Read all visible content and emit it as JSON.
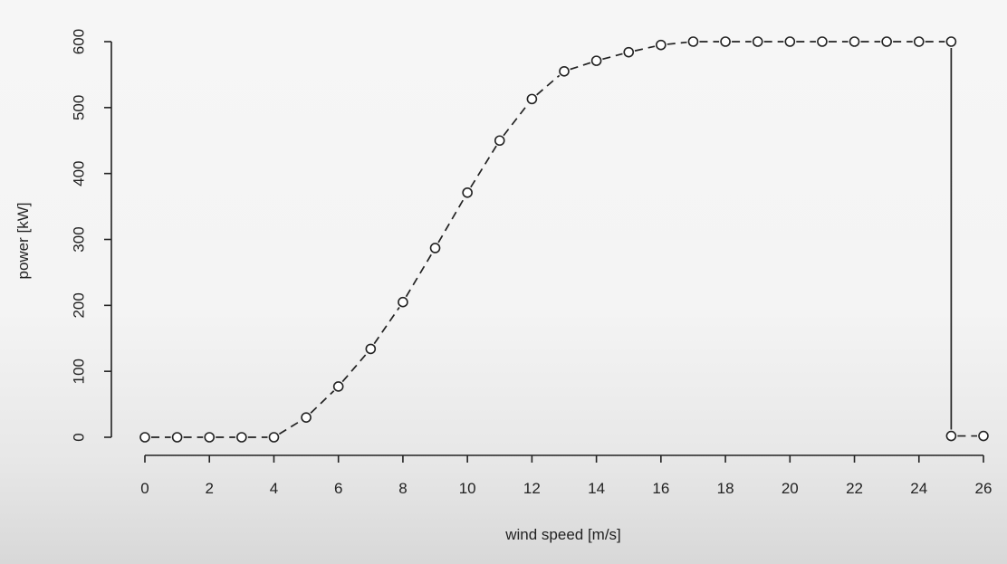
{
  "chart_data": {
    "type": "line",
    "marker": "open-circle",
    "line_style": "dashed",
    "xlabel": "wind speed [m/s]",
    "ylabel": "power [kW]",
    "xlim": [
      0,
      26
    ],
    "ylim": [
      0,
      600
    ],
    "xticks": [
      0,
      2,
      4,
      6,
      8,
      10,
      12,
      14,
      16,
      18,
      20,
      22,
      24,
      26
    ],
    "yticks": [
      0,
      100,
      200,
      300,
      400,
      500,
      600
    ],
    "grid": false,
    "series": [
      {
        "x": [
          0,
          1,
          2,
          3,
          4,
          5,
          6,
          7,
          8,
          9,
          10,
          11,
          12,
          13,
          14,
          15,
          16,
          17,
          18,
          19,
          20,
          21,
          22,
          23,
          24,
          25,
          25,
          26
        ],
        "y": [
          0,
          0,
          0,
          0,
          0,
          30,
          77,
          134,
          205,
          287,
          371,
          450,
          513,
          555,
          571,
          584,
          595,
          600,
          600,
          600,
          600,
          600,
          600,
          600,
          600,
          600,
          2,
          2
        ]
      }
    ],
    "colors": {
      "ink": "#222222",
      "marker_fill": "#ffffff"
    }
  }
}
